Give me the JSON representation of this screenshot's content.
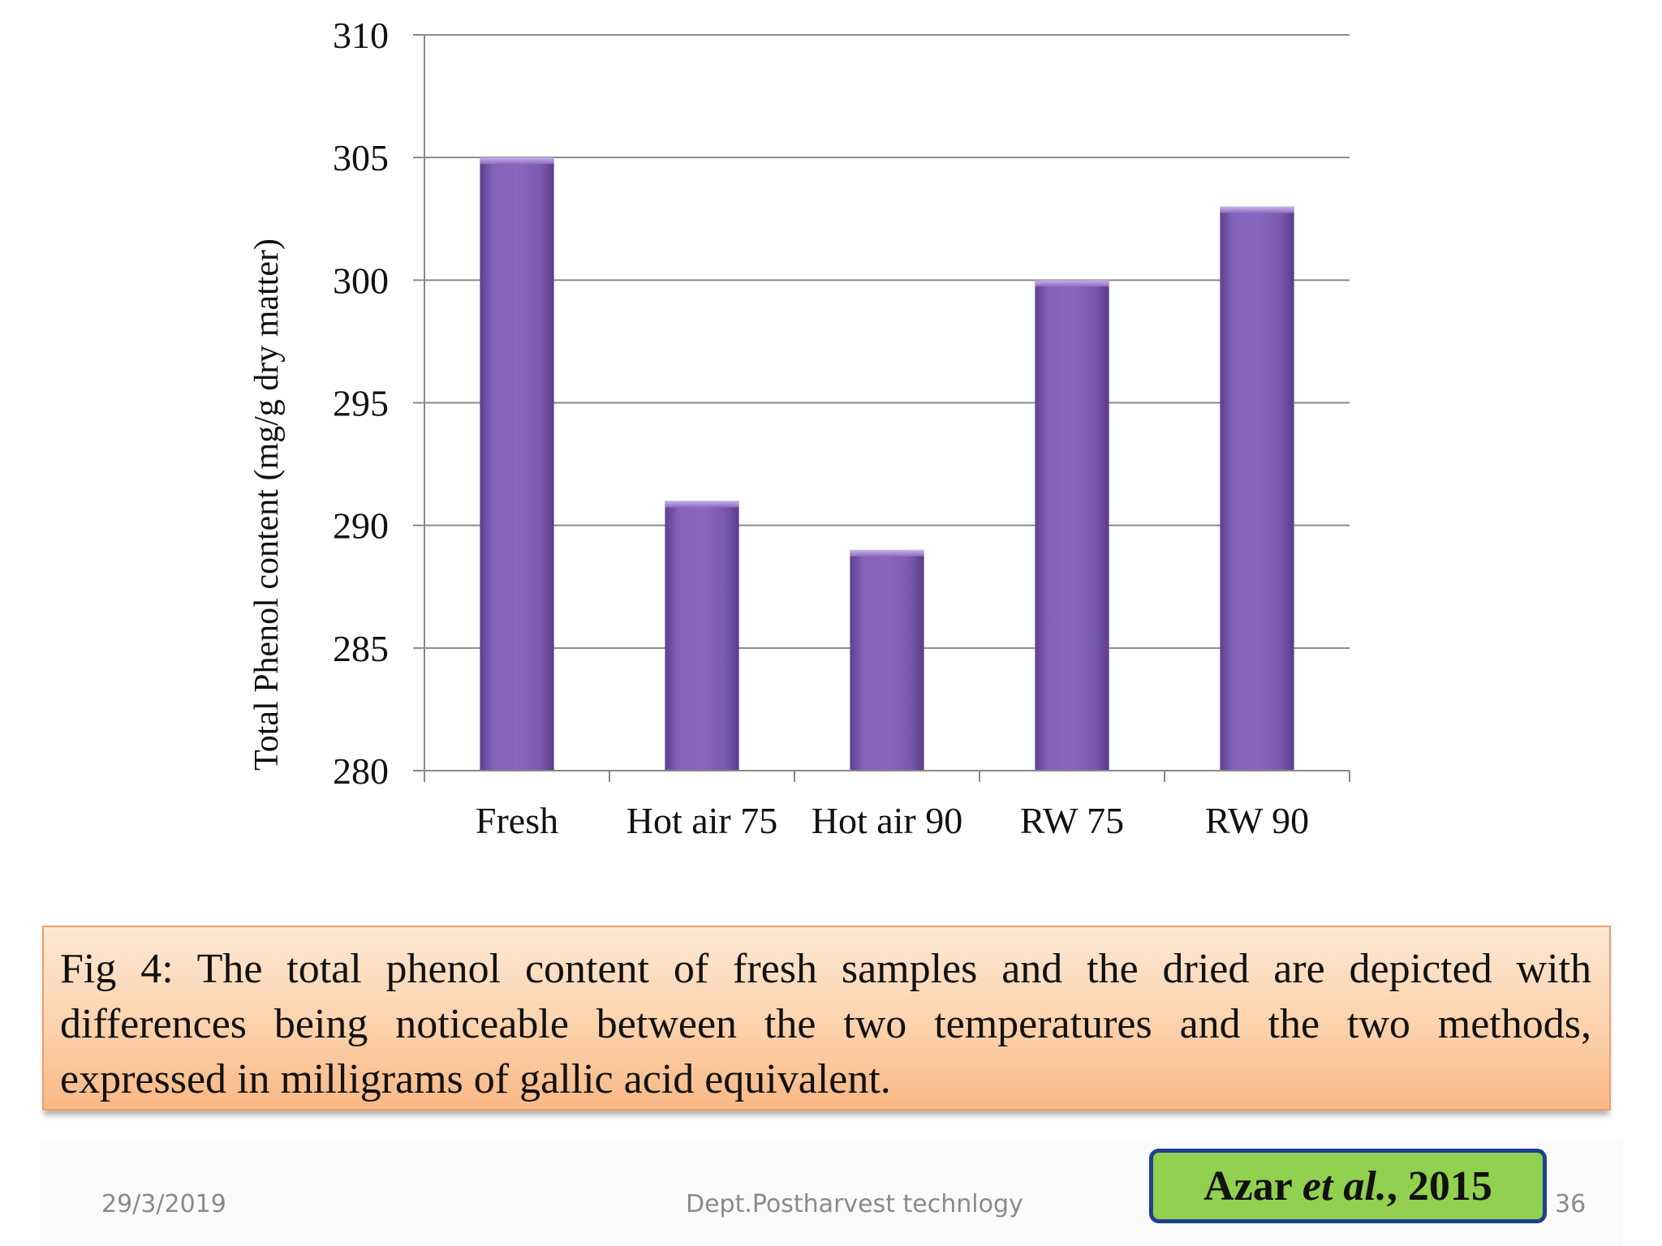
{
  "chart_data": {
    "type": "bar",
    "categories": [
      "Fresh",
      "Hot air 75",
      "Hot air 90",
      "RW 75",
      "RW 90"
    ],
    "values": [
      305,
      291,
      289,
      300,
      303
    ],
    "ylabel": "Total Phenol content (mg/g dry matter)",
    "ylim": [
      280,
      310
    ],
    "yticks": [
      280,
      285,
      290,
      295,
      300,
      305,
      310
    ],
    "grid": true,
    "bar_color": "#7f5bb0"
  },
  "caption": {
    "text": "Fig 4:  The total phenol content of fresh samples and the dried are depicted with differences being noticeable between the two temperatures and the two methods, expressed in milligrams of gallic acid equivalent."
  },
  "citation": {
    "author": "Azar ",
    "etal": "et al.",
    "year": ", 2015"
  },
  "footer": {
    "date": "29/3/2019",
    "dept": "Dept.Postharvest technlogy",
    "page": "36"
  }
}
